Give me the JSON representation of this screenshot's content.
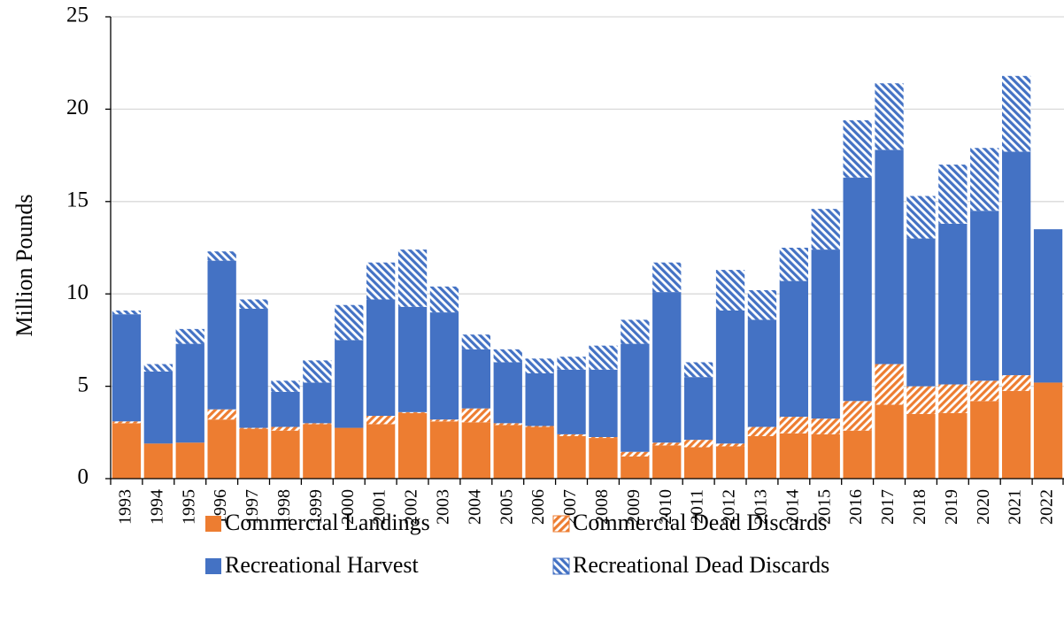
{
  "chart_data": {
    "type": "stacked_bar",
    "y_label": "Million Pounds",
    "categories": [
      "1993",
      "1994",
      "1995",
      "1996",
      "1997",
      "1998",
      "1999",
      "2000",
      "2001",
      "2002",
      "2003",
      "2004",
      "2005",
      "2006",
      "2007",
      "2008",
      "2009",
      "2010",
      "2011",
      "2012",
      "2013",
      "2014",
      "2015",
      "2016",
      "2017",
      "2018",
      "2019",
      "2020",
      "2021",
      "2022"
    ],
    "series": [
      {
        "name": "Commercial Landings",
        "color": "#ED7D31",
        "pattern": "solid",
        "values": [
          3.0,
          1.9,
          1.95,
          3.2,
          2.7,
          2.6,
          2.95,
          2.75,
          2.95,
          3.55,
          3.1,
          3.05,
          2.9,
          2.8,
          2.3,
          2.2,
          1.2,
          1.8,
          1.7,
          1.75,
          2.3,
          2.45,
          2.4,
          2.6,
          4.0,
          3.5,
          3.55,
          4.2,
          4.75,
          5.2
        ]
      },
      {
        "name": "Commercial Dead Discards",
        "color": "#ED7D31",
        "pattern": "hatch-up",
        "values": [
          0.1,
          0,
          0,
          0.55,
          0.05,
          0.2,
          0.05,
          0,
          0.45,
          0.05,
          0.1,
          0.75,
          0.1,
          0.05,
          0.1,
          0.05,
          0.25,
          0.15,
          0.4,
          0.15,
          0.5,
          0.9,
          0.85,
          1.6,
          2.2,
          1.5,
          1.55,
          1.1,
          0.85,
          0
        ]
      },
      {
        "name": "Recreational Harvest",
        "color": "#4472C4",
        "pattern": "solid",
        "values": [
          5.8,
          3.9,
          5.35,
          8.05,
          6.45,
          1.9,
          2.2,
          4.75,
          6.3,
          5.7,
          5.8,
          3.2,
          3.3,
          2.85,
          3.5,
          3.65,
          5.85,
          8.15,
          3.4,
          7.2,
          5.8,
          7.35,
          9.15,
          12.1,
          11.6,
          8.0,
          8.7,
          9.2,
          12.1,
          8.3
        ]
      },
      {
        "name": "Recreational Dead Discards",
        "color": "#4472C4",
        "pattern": "hatch-down",
        "values": [
          0.2,
          0.4,
          0.8,
          0.5,
          0.5,
          0.6,
          1.2,
          1.9,
          2.0,
          3.1,
          1.4,
          0.8,
          0.7,
          0.8,
          0.7,
          1.3,
          1.3,
          1.6,
          0.8,
          2.2,
          1.6,
          1.8,
          2.2,
          3.1,
          3.6,
          2.3,
          3.2,
          3.4,
          4.1,
          0
        ]
      }
    ],
    "ylim": [
      0,
      25
    ],
    "yticks": [
      0,
      5,
      10,
      15,
      20,
      25
    ],
    "grid": true
  }
}
